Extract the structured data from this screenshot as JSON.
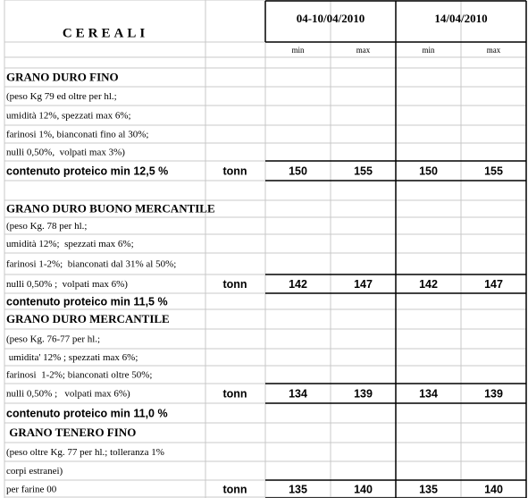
{
  "header": {
    "title": "CEREALI",
    "periods": [
      {
        "label": "04-10/04/2010",
        "columns": [
          "min",
          "max"
        ]
      },
      {
        "label": "14/04/2010",
        "columns": [
          "min",
          "max"
        ]
      }
    ]
  },
  "rows": [
    {
      "label": "GRANO DURO FINO"
    },
    {
      "label": "(peso Kg 79 ed oltre per hl.;"
    },
    {
      "label": "umidità 12%, spezzati max 6%;"
    },
    {
      "label": "farinosi 1%, bianconati fino al 30%;"
    },
    {
      "label": "nulli 0,50%,  volpati max 3%)"
    },
    {
      "label": "contenuto proteico min 12,5 %",
      "unit": "tonn",
      "values": [
        150,
        155,
        150,
        155
      ]
    },
    {
      "label": "GRANO DURO BUONO MERCANTILE"
    },
    {
      "label": "(peso Kg. 78 per hl.;"
    },
    {
      "label": "umidità 12%;  spezzati max 6%;"
    },
    {
      "label": "farinosi 1-2%;  bianconati dal 31% al 50%;"
    },
    {
      "label": "nulli 0,50% ;  volpati max 6%)",
      "unit": "tonn",
      "values": [
        142,
        147,
        142,
        147
      ]
    },
    {
      "label": "contenuto proteico min 11,5 %"
    },
    {
      "label": "GRANO DURO MERCANTILE"
    },
    {
      "label": "(peso Kg. 76-77 per hl.;"
    },
    {
      "label": " umidita' 12% ; spezzati max 6%;"
    },
    {
      "label": "farinosi  1-2%; bianconati oltre 50%;"
    },
    {
      "label": "nulli 0,50% ;   volpati max 6%)",
      "unit": "tonn",
      "values": [
        134,
        139,
        134,
        139
      ]
    },
    {
      "label": "contenuto proteico min 11,0 %"
    },
    {
      "label": " GRANO TENERO FINO"
    },
    {
      "label": "(peso oltre Kg. 77 per hl.; tolleranza 1%"
    },
    {
      "label": "corpi estranei)"
    },
    {
      "label": "per farine 00",
      "unit": "tonn",
      "values": [
        135,
        140,
        135,
        140
      ]
    }
  ]
}
